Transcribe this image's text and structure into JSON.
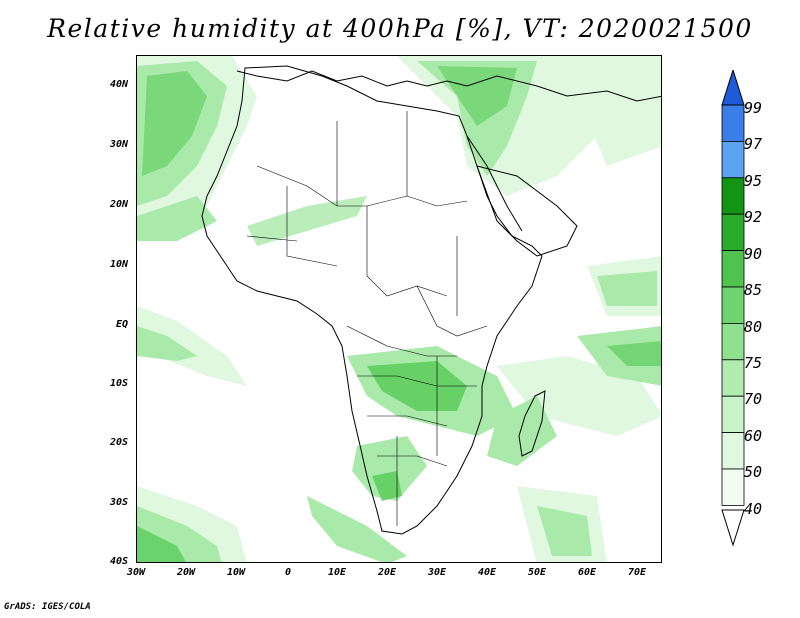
{
  "title": "Relative humidity at 400hPa [%], VT: 2020021500",
  "credit": "GrADS: IGES/COLA",
  "map": {
    "lat_labels": [
      "40N",
      "30N",
      "20N",
      "10N",
      "EQ",
      "10S",
      "20S",
      "30S",
      "40S"
    ],
    "lon_labels": [
      "30W",
      "20W",
      "10W",
      "0",
      "10E",
      "20E",
      "30E",
      "40E",
      "50E",
      "60E",
      "70E"
    ],
    "lat_range": [
      -40,
      45
    ],
    "lon_range": [
      -30,
      75
    ],
    "land_outline_color": "#000000",
    "background_color": "#ffffff"
  },
  "colorbar": {
    "levels": [
      "99",
      "97",
      "95",
      "92",
      "90",
      "85",
      "80",
      "75",
      "70",
      "60",
      "50",
      "40"
    ],
    "colors": [
      "#1e5bd8",
      "#3a7fe8",
      "#5aa3f0",
      "#149414",
      "#2aab2a",
      "#4fc24f",
      "#6fd46f",
      "#8fe08f",
      "#b0ecb0",
      "#c8f2c8",
      "#dff8df",
      "#f0fdf0"
    ]
  },
  "fill_colors": {
    "light": "#dff8df",
    "medium": "#a9e9a9",
    "strong": "#5ccc5c"
  }
}
